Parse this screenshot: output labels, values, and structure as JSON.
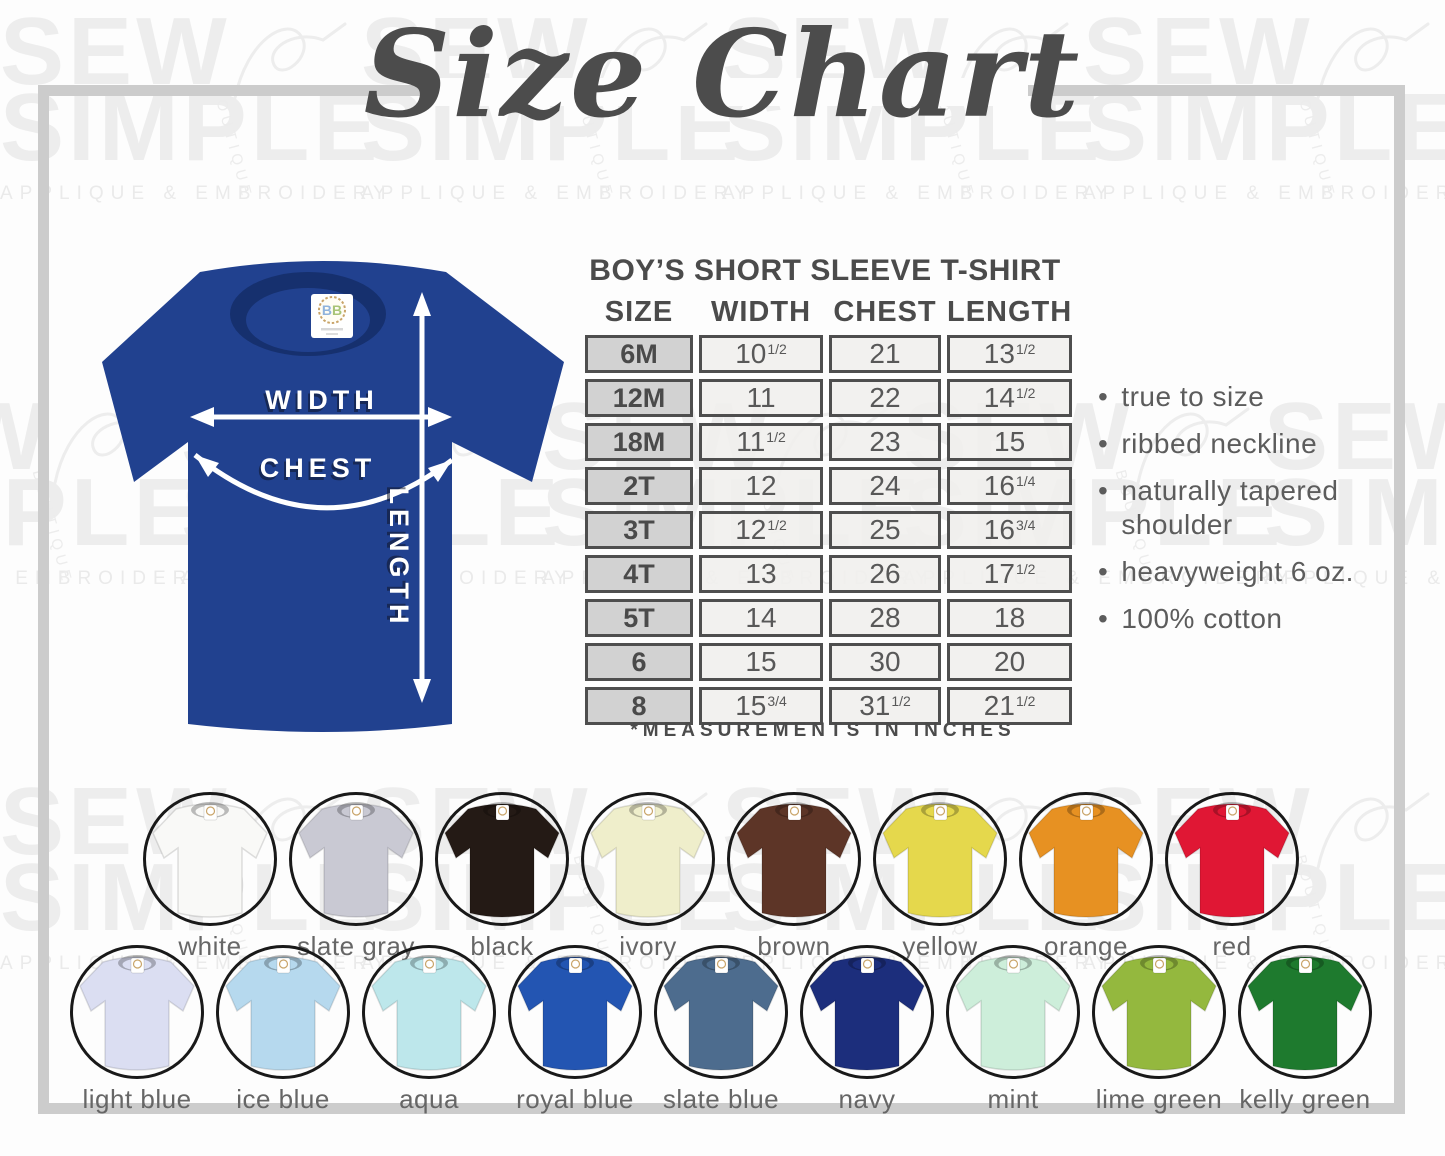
{
  "page": {
    "title_script": "Size Chart",
    "frame_color": "#cccccc",
    "background": "#fdfdfd"
  },
  "watermark": {
    "word1": "SEW",
    "word2": "SIMPLE",
    "word3": "BOUTIQUE",
    "tagline": "APPLIQUE & EMBROIDERY",
    "color": "#ededed"
  },
  "diagram": {
    "shirt_color": "#21418f",
    "collar_color": "#16306e",
    "width_label": "WIDTH",
    "chest_label": "CHEST",
    "length_label": "LENGTH",
    "tag_text": "BB"
  },
  "size_table": {
    "heading": "BOY’S SHORT SLEEVE T-SHIRT",
    "columns": [
      "SIZE",
      "WIDTH",
      "CHEST",
      "LENGTH"
    ],
    "rows": [
      {
        "size": "6M",
        "width": {
          "n": "10",
          "f": "1/2"
        },
        "chest": {
          "n": "21",
          "f": ""
        },
        "length": {
          "n": "13",
          "f": "1/2"
        }
      },
      {
        "size": "12M",
        "width": {
          "n": "11",
          "f": ""
        },
        "chest": {
          "n": "22",
          "f": ""
        },
        "length": {
          "n": "14",
          "f": "1/2"
        }
      },
      {
        "size": "18M",
        "width": {
          "n": "11",
          "f": "1/2"
        },
        "chest": {
          "n": "23",
          "f": ""
        },
        "length": {
          "n": "15",
          "f": ""
        }
      },
      {
        "size": "2T",
        "width": {
          "n": "12",
          "f": ""
        },
        "chest": {
          "n": "24",
          "f": ""
        },
        "length": {
          "n": "16",
          "f": "1/4"
        }
      },
      {
        "size": "3T",
        "width": {
          "n": "12",
          "f": "1/2"
        },
        "chest": {
          "n": "25",
          "f": ""
        },
        "length": {
          "n": "16",
          "f": "3/4"
        }
      },
      {
        "size": "4T",
        "width": {
          "n": "13",
          "f": ""
        },
        "chest": {
          "n": "26",
          "f": ""
        },
        "length": {
          "n": "17",
          "f": "1/2"
        }
      },
      {
        "size": "5T",
        "width": {
          "n": "14",
          "f": ""
        },
        "chest": {
          "n": "28",
          "f": ""
        },
        "length": {
          "n": "18",
          "f": ""
        }
      },
      {
        "size": "6",
        "width": {
          "n": "15",
          "f": ""
        },
        "chest": {
          "n": "30",
          "f": ""
        },
        "length": {
          "n": "20",
          "f": ""
        }
      },
      {
        "size": "8",
        "width": {
          "n": "15",
          "f": "3/4"
        },
        "chest": {
          "n": "31",
          "f": "1/2"
        },
        "length": {
          "n": "21",
          "f": "1/2"
        }
      }
    ],
    "note": "*MEASUREMENTS IN INCHES"
  },
  "features": [
    "true to size",
    "ribbed neckline",
    "naturally tapered shoulder",
    "heavyweight 6 oz.",
    "100% cotton"
  ],
  "swatches": {
    "row1": [
      {
        "label": "white",
        "color": "#f9f9f7"
      },
      {
        "label": "slate gray",
        "color": "#c9c9d3"
      },
      {
        "label": "black",
        "color": "#241a15"
      },
      {
        "label": "ivory",
        "color": "#efeecb"
      },
      {
        "label": "brown",
        "color": "#5d3527"
      },
      {
        "label": "yellow",
        "color": "#e5d84c"
      },
      {
        "label": "orange",
        "color": "#e79122"
      },
      {
        "label": "red",
        "color": "#e01734"
      }
    ],
    "row2": [
      {
        "label": "light blue",
        "color": "#dbdef2"
      },
      {
        "label": "ice blue",
        "color": "#b6d9ee"
      },
      {
        "label": "aqua",
        "color": "#bde7eb"
      },
      {
        "label": "royal blue",
        "color": "#2355b2"
      },
      {
        "label": "slate blue",
        "color": "#4d6c8e"
      },
      {
        "label": "navy",
        "color": "#1c2e7c"
      },
      {
        "label": "mint",
        "color": "#cdeeda"
      },
      {
        "label": "lime green",
        "color": "#94b83e"
      },
      {
        "label": "kelly green",
        "color": "#1e7a2e"
      }
    ]
  },
  "chart_data": {
    "type": "table",
    "title": "BOY’S SHORT SLEEVE T-SHIRT",
    "units": "inches",
    "columns": [
      "SIZE",
      "WIDTH",
      "CHEST",
      "LENGTH"
    ],
    "sizes": [
      "6M",
      "12M",
      "18M",
      "2T",
      "3T",
      "4T",
      "5T",
      "6",
      "8"
    ],
    "width_in": [
      10.5,
      11,
      11.5,
      12,
      12.5,
      13,
      14,
      15,
      15.75
    ],
    "chest_in": [
      21,
      22,
      23,
      24,
      25,
      26,
      28,
      30,
      31.5
    ],
    "length_in": [
      13.5,
      14.5,
      15,
      16.25,
      16.75,
      17.5,
      18,
      20,
      21.5
    ]
  }
}
